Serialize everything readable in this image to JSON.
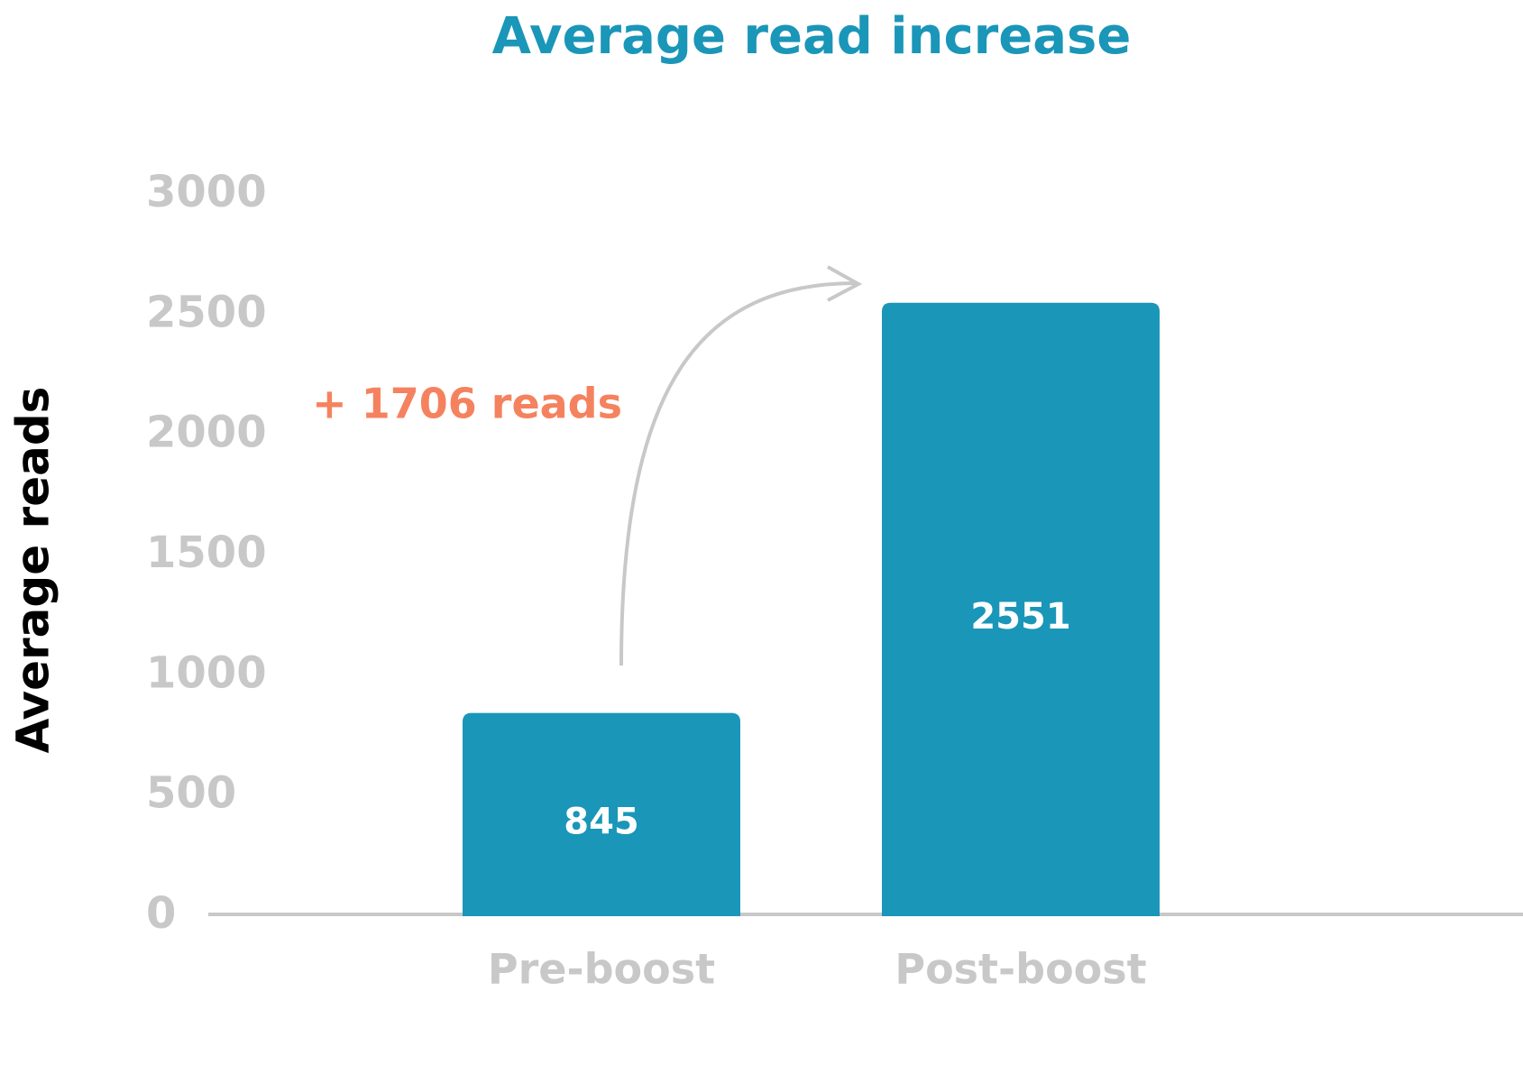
{
  "chart_data": {
    "type": "bar",
    "title": "Average read increase",
    "y_label": "Average reads",
    "categories": [
      "Pre-boost",
      "Post-boost"
    ],
    "values": [
      845,
      2551
    ],
    "color": "#1a96b8",
    "ylim": [
      0,
      3000
    ],
    "yticks": [
      0,
      500,
      1000,
      1500,
      2000,
      2500,
      3000
    ],
    "grid": false,
    "annotation": "+ 1706 reads"
  }
}
